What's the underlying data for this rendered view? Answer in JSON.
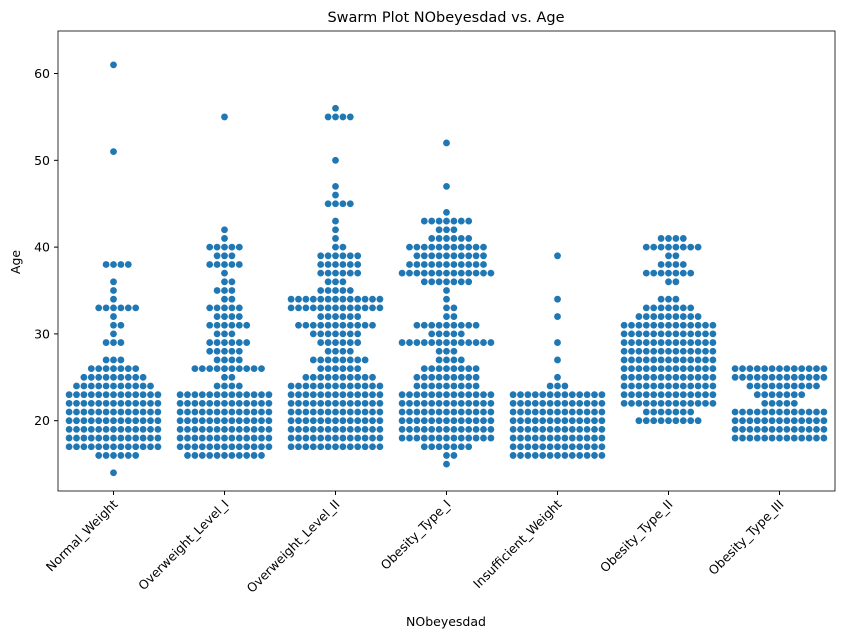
{
  "chart_data": {
    "type": "swarm",
    "title": "Swarm Plot NObeyesdad vs. Age",
    "xlabel": "NObeyesdad",
    "ylabel": "Age",
    "categories": [
      "Normal_Weight",
      "Overweight_Level_I",
      "Overweight_Level_II",
      "Obesity_Type_I",
      "Insufficient_Weight",
      "Obesity_Type_II",
      "Obesity_Type_III"
    ],
    "color": "#1f77b4",
    "ylim": [
      11.9,
      64.9
    ],
    "yticks": [
      20,
      30,
      40,
      50,
      60
    ],
    "values": [
      [
        14,
        16,
        16,
        16,
        16,
        16,
        16,
        17,
        17,
        17,
        17,
        17,
        17,
        17,
        17,
        17,
        17,
        17,
        17,
        17,
        18,
        18,
        18,
        18,
        18,
        18,
        18,
        18,
        18,
        18,
        18,
        18,
        18,
        19,
        19,
        19,
        19,
        19,
        19,
        19,
        19,
        19,
        19,
        19,
        19,
        19,
        20,
        20,
        20,
        20,
        20,
        20,
        20,
        20,
        20,
        20,
        20,
        20,
        20,
        21,
        21,
        21,
        21,
        21,
        21,
        21,
        21,
        21,
        21,
        21,
        21,
        21,
        22,
        22,
        22,
        22,
        22,
        22,
        22,
        22,
        22,
        22,
        22,
        22,
        22,
        23,
        23,
        23,
        23,
        23,
        23,
        23,
        23,
        23,
        23,
        23,
        23,
        23,
        24,
        24,
        24,
        24,
        24,
        24,
        24,
        24,
        24,
        24,
        24,
        25,
        25,
        25,
        25,
        25,
        25,
        25,
        25,
        25,
        26,
        26,
        26,
        26,
        26,
        26,
        26,
        27,
        27,
        27,
        29,
        29,
        29,
        30,
        31,
        31,
        32,
        33,
        33,
        33,
        33,
        33,
        33,
        34,
        35,
        36,
        38,
        38,
        38,
        38,
        51,
        61
      ],
      [
        16,
        16,
        16,
        16,
        16,
        16,
        16,
        16,
        16,
        16,
        16,
        17,
        17,
        17,
        17,
        17,
        17,
        17,
        17,
        17,
        17,
        17,
        17,
        17,
        18,
        18,
        18,
        18,
        18,
        18,
        18,
        18,
        18,
        18,
        18,
        18,
        18,
        19,
        19,
        19,
        19,
        19,
        19,
        19,
        19,
        19,
        19,
        19,
        19,
        19,
        20,
        20,
        20,
        20,
        20,
        20,
        20,
        20,
        20,
        20,
        20,
        20,
        20,
        21,
        21,
        21,
        21,
        21,
        21,
        21,
        21,
        21,
        21,
        21,
        21,
        21,
        22,
        22,
        22,
        22,
        22,
        22,
        22,
        22,
        22,
        22,
        22,
        22,
        22,
        23,
        23,
        23,
        23,
        23,
        23,
        23,
        23,
        23,
        23,
        23,
        23,
        23,
        24,
        24,
        24,
        24,
        25,
        25,
        26,
        26,
        26,
        26,
        26,
        26,
        26,
        26,
        26,
        26,
        27,
        27,
        27,
        27,
        28,
        28,
        28,
        28,
        28,
        29,
        29,
        29,
        29,
        29,
        29,
        30,
        30,
        30,
        31,
        31,
        31,
        31,
        31,
        31,
        32,
        32,
        32,
        32,
        33,
        33,
        33,
        33,
        33,
        34,
        34,
        35,
        35,
        35,
        36,
        36,
        37,
        38,
        38,
        38,
        38,
        38,
        39,
        39,
        39,
        40,
        40,
        40,
        40,
        40,
        41,
        42,
        55
      ],
      [
        17,
        17,
        17,
        17,
        17,
        17,
        17,
        17,
        17,
        17,
        17,
        17,
        17,
        18,
        18,
        18,
        18,
        18,
        18,
        18,
        18,
        18,
        18,
        18,
        18,
        18,
        19,
        19,
        19,
        19,
        19,
        19,
        19,
        19,
        19,
        19,
        19,
        19,
        19,
        20,
        20,
        20,
        20,
        20,
        20,
        20,
        20,
        20,
        20,
        20,
        20,
        20,
        21,
        21,
        21,
        21,
        21,
        21,
        21,
        21,
        21,
        21,
        21,
        21,
        21,
        22,
        22,
        22,
        22,
        22,
        22,
        22,
        22,
        22,
        22,
        22,
        22,
        22,
        23,
        23,
        23,
        23,
        23,
        23,
        23,
        23,
        23,
        23,
        23,
        23,
        23,
        24,
        24,
        24,
        24,
        24,
        24,
        24,
        24,
        24,
        24,
        24,
        24,
        24,
        25,
        25,
        25,
        25,
        25,
        25,
        25,
        25,
        25,
        25,
        26,
        26,
        26,
        26,
        26,
        26,
        27,
        27,
        27,
        27,
        27,
        27,
        27,
        27,
        28,
        28,
        28,
        28,
        29,
        29,
        29,
        29,
        29,
        29,
        30,
        30,
        30,
        30,
        30,
        30,
        30,
        31,
        31,
        31,
        31,
        31,
        31,
        31,
        31,
        31,
        31,
        31,
        32,
        32,
        32,
        32,
        32,
        32,
        33,
        33,
        33,
        33,
        33,
        33,
        33,
        33,
        33,
        33,
        33,
        33,
        33,
        34,
        34,
        34,
        34,
        34,
        34,
        34,
        34,
        34,
        34,
        34,
        34,
        34,
        35,
        35,
        35,
        35,
        35,
        36,
        36,
        36,
        37,
        37,
        37,
        37,
        37,
        37,
        38,
        38,
        38,
        38,
        38,
        38,
        39,
        39,
        39,
        39,
        39,
        39,
        40,
        40,
        41,
        42,
        43,
        45,
        45,
        45,
        45,
        46,
        47,
        50,
        55,
        55,
        55,
        55,
        56
      ],
      [
        15,
        16,
        16,
        17,
        17,
        17,
        17,
        17,
        17,
        17,
        18,
        18,
        18,
        18,
        18,
        18,
        18,
        18,
        18,
        18,
        18,
        18,
        18,
        19,
        19,
        19,
        19,
        19,
        19,
        19,
        19,
        19,
        19,
        19,
        19,
        19,
        20,
        20,
        20,
        20,
        20,
        20,
        20,
        20,
        20,
        20,
        20,
        20,
        20,
        21,
        21,
        21,
        21,
        21,
        21,
        21,
        21,
        21,
        21,
        21,
        21,
        21,
        22,
        22,
        22,
        22,
        22,
        22,
        22,
        22,
        22,
        22,
        22,
        22,
        22,
        23,
        23,
        23,
        23,
        23,
        23,
        23,
        23,
        23,
        23,
        23,
        23,
        23,
        24,
        24,
        24,
        24,
        24,
        24,
        24,
        24,
        24,
        25,
        25,
        25,
        25,
        25,
        25,
        25,
        25,
        25,
        26,
        26,
        26,
        26,
        26,
        26,
        26,
        26,
        27,
        27,
        27,
        27,
        28,
        28,
        28,
        29,
        29,
        29,
        29,
        29,
        29,
        29,
        29,
        29,
        29,
        29,
        29,
        29,
        30,
        30,
        30,
        30,
        30,
        31,
        31,
        31,
        31,
        31,
        31,
        31,
        31,
        31,
        32,
        32,
        33,
        33,
        34,
        35,
        36,
        36,
        36,
        36,
        36,
        36,
        36,
        37,
        37,
        37,
        37,
        37,
        37,
        37,
        37,
        37,
        37,
        37,
        37,
        37,
        38,
        38,
        38,
        38,
        38,
        38,
        38,
        38,
        38,
        38,
        38,
        39,
        39,
        39,
        39,
        39,
        39,
        39,
        39,
        39,
        39,
        40,
        40,
        40,
        40,
        40,
        40,
        40,
        40,
        40,
        40,
        40,
        41,
        41,
        41,
        41,
        41,
        41,
        42,
        42,
        42,
        43,
        43,
        43,
        43,
        43,
        43,
        43,
        44,
        47,
        52
      ],
      [
        16,
        16,
        16,
        16,
        16,
        16,
        16,
        16,
        16,
        16,
        16,
        16,
        16,
        17,
        17,
        17,
        17,
        17,
        17,
        17,
        17,
        17,
        17,
        17,
        17,
        17,
        18,
        18,
        18,
        18,
        18,
        18,
        18,
        18,
        18,
        18,
        18,
        18,
        18,
        19,
        19,
        19,
        19,
        19,
        19,
        19,
        19,
        19,
        19,
        19,
        19,
        19,
        20,
        20,
        20,
        20,
        20,
        20,
        20,
        20,
        20,
        20,
        20,
        20,
        20,
        21,
        21,
        21,
        21,
        21,
        21,
        21,
        21,
        21,
        21,
        21,
        21,
        21,
        22,
        22,
        22,
        22,
        22,
        22,
        22,
        22,
        22,
        22,
        22,
        22,
        22,
        23,
        23,
        23,
        23,
        23,
        23,
        23,
        23,
        23,
        23,
        23,
        23,
        23,
        24,
        24,
        24,
        25,
        27,
        29,
        32,
        34,
        39
      ],
      [
        20,
        20,
        20,
        20,
        20,
        20,
        20,
        20,
        20,
        21,
        21,
        21,
        21,
        21,
        21,
        21,
        22,
        22,
        22,
        22,
        22,
        22,
        22,
        22,
        22,
        22,
        22,
        22,
        22,
        23,
        23,
        23,
        23,
        23,
        23,
        23,
        23,
        23,
        23,
        23,
        23,
        23,
        24,
        24,
        24,
        24,
        24,
        24,
        24,
        24,
        24,
        24,
        24,
        24,
        24,
        25,
        25,
        25,
        25,
        25,
        25,
        25,
        25,
        25,
        25,
        25,
        25,
        25,
        26,
        26,
        26,
        26,
        26,
        26,
        26,
        26,
        26,
        26,
        26,
        26,
        26,
        27,
        27,
        27,
        27,
        27,
        27,
        27,
        27,
        27,
        27,
        27,
        27,
        27,
        28,
        28,
        28,
        28,
        28,
        28,
        28,
        28,
        28,
        28,
        28,
        28,
        28,
        29,
        29,
        29,
        29,
        29,
        29,
        29,
        29,
        29,
        29,
        29,
        29,
        29,
        30,
        30,
        30,
        30,
        30,
        30,
        30,
        30,
        30,
        30,
        30,
        30,
        30,
        31,
        31,
        31,
        31,
        31,
        31,
        31,
        31,
        31,
        31,
        31,
        31,
        31,
        32,
        32,
        32,
        32,
        32,
        32,
        32,
        32,
        32,
        33,
        33,
        33,
        33,
        33,
        33,
        33,
        34,
        34,
        34,
        36,
        36,
        37,
        37,
        37,
        37,
        37,
        37,
        37,
        38,
        38,
        38,
        38,
        39,
        39,
        40,
        40,
        40,
        40,
        40,
        40,
        40,
        40,
        41,
        41,
        41,
        41
      ],
      [
        18,
        18,
        18,
        18,
        18,
        18,
        18,
        18,
        18,
        18,
        18,
        18,
        18,
        19,
        19,
        19,
        19,
        19,
        19,
        19,
        19,
        19,
        19,
        19,
        19,
        19,
        20,
        20,
        20,
        20,
        20,
        20,
        20,
        20,
        20,
        20,
        20,
        20,
        20,
        21,
        21,
        21,
        21,
        21,
        21,
        21,
        21,
        21,
        21,
        21,
        21,
        21,
        22,
        22,
        22,
        22,
        22,
        23,
        23,
        23,
        23,
        23,
        23,
        23,
        24,
        24,
        24,
        24,
        24,
        24,
        24,
        24,
        24,
        24,
        25,
        25,
        25,
        25,
        25,
        25,
        25,
        25,
        25,
        25,
        25,
        25,
        25,
        26,
        26,
        26,
        26,
        26,
        26,
        26,
        26,
        26,
        26,
        26,
        26,
        26
      ]
    ]
  }
}
